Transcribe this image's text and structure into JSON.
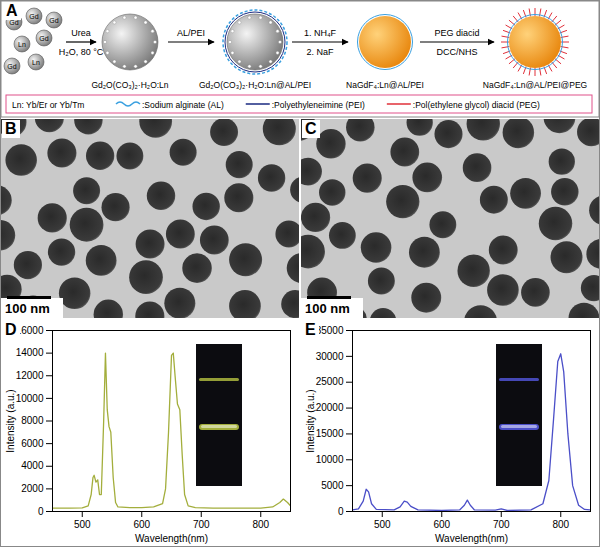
{
  "chart_data": [
    {
      "label": "D",
      "type": "line",
      "x_label": "Wavelength(nm)",
      "y_label": "Intensity (a.u.)",
      "x": [
        450,
        480,
        500,
        510,
        515,
        518,
        520,
        523,
        526,
        529,
        532,
        536,
        539,
        542,
        545,
        548,
        552,
        556,
        560,
        580,
        600,
        620,
        635,
        640,
        645,
        650,
        653,
        656,
        660,
        664,
        668,
        672,
        678,
        690,
        720,
        760,
        800,
        820,
        832,
        838,
        845,
        850
      ],
      "values": [
        300,
        300,
        320,
        500,
        1500,
        3000,
        3200,
        2600,
        2800,
        1500,
        1500,
        8000,
        14000,
        9000,
        7500,
        7000,
        3000,
        800,
        400,
        350,
        350,
        400,
        700,
        2000,
        7000,
        13800,
        14000,
        12000,
        9500,
        9000,
        5000,
        1500,
        500,
        350,
        300,
        300,
        300,
        400,
        800,
        1100,
        800,
        500
      ],
      "color": "#a3ae3c",
      "xlim": [
        450,
        850
      ],
      "xticks": [
        500,
        600,
        700,
        800
      ],
      "ylim": [
        0,
        16000
      ],
      "yticks": [
        0,
        2000,
        4000,
        6000,
        8000,
        10000,
        12000,
        14000,
        16000
      ]
    },
    {
      "label": "E",
      "type": "line",
      "x_label": "Wavelength(nm)",
      "y_label": "Intensity (a.u.)",
      "x": [
        450,
        460,
        468,
        473,
        477,
        482,
        490,
        520,
        530,
        537,
        542,
        548,
        560,
        600,
        630,
        638,
        643,
        648,
        655,
        690,
        700,
        710,
        750,
        770,
        780,
        788,
        795,
        800,
        805,
        812,
        820,
        830,
        840,
        850
      ],
      "values": [
        300,
        500,
        2000,
        4300,
        3800,
        1500,
        400,
        300,
        900,
        2000,
        1800,
        1000,
        300,
        200,
        300,
        1200,
        2200,
        1200,
        300,
        250,
        500,
        200,
        300,
        1500,
        6000,
        18000,
        29000,
        30500,
        27000,
        15000,
        5000,
        1200,
        400,
        300
      ],
      "color": "#4b4fc8",
      "xlim": [
        450,
        850
      ],
      "xticks": [
        500,
        600,
        700,
        800
      ],
      "ylim": [
        0,
        35000
      ],
      "yticks": [
        0,
        5000,
        10000,
        15000,
        20000,
        25000,
        30000,
        35000
      ]
    }
  ],
  "diagram": {
    "label": "A",
    "ions": [
      "Gd",
      "Ln"
    ],
    "reagents": [
      [
        "Urea",
        "H₂O, 80 °C"
      ],
      [
        "AL/PEI"
      ],
      [
        "1. NH₄F",
        "2. NaF"
      ],
      [
        "PEG diacid",
        "DCC/NHS"
      ]
    ],
    "products": [
      "Gd₂O(CO₃)₂·H₂O:Ln",
      "Gd₂O(CO₃)₂·H₂O:Ln@AL/PEI",
      "NaGdF₄:Ln@AL/PEI",
      "NaGdF₄:Ln@AL/PEI@PEG"
    ],
    "legend": {
      "note": "Ln: Yb/Er or Yb/Tm",
      "items": [
        ":Sodium alginate (AL)",
        ":Polyethyleneimine (PEI)",
        ":Pol(ethylene glycol) diacid (PEG)"
      ]
    }
  },
  "images": [
    {
      "label": "B",
      "scale_bar": "100 nm"
    },
    {
      "label": "C",
      "scale_bar": "100 nm"
    }
  ]
}
